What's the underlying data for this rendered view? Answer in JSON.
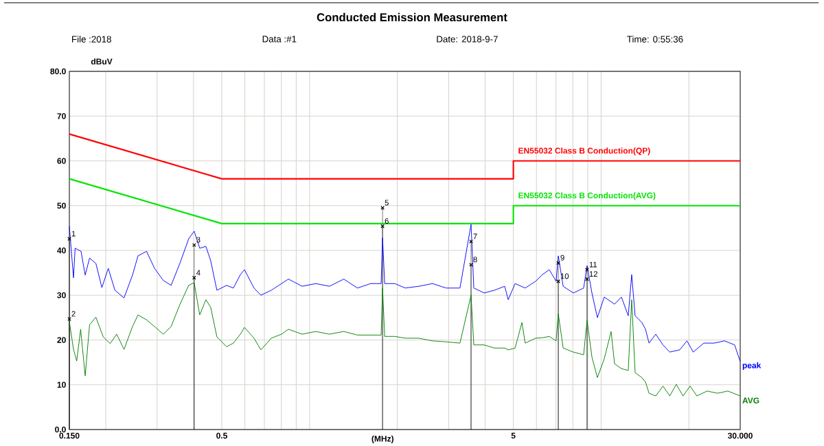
{
  "chart_data": {
    "type": "line",
    "title": "Conducted Emission Measurement",
    "xlabel": "(MHz)",
    "ylabel": "dBuV",
    "log": "x",
    "grid": true,
    "marker": "none",
    "line_style": "solid",
    "xlim": [
      0.15,
      30
    ],
    "ylim": [
      0,
      80
    ],
    "xticks": [
      {
        "value": 0.15,
        "label": "0.150"
      },
      {
        "value": 0.2,
        "label": null
      },
      {
        "value": 0.3,
        "label": null
      },
      {
        "value": 0.4,
        "label": null
      },
      {
        "value": 0.5,
        "label": "0.5"
      },
      {
        "value": 0.6,
        "label": null
      },
      {
        "value": 0.7,
        "label": null
      },
      {
        "value": 0.8,
        "label": null
      },
      {
        "value": 0.9,
        "label": null
      },
      {
        "value": 1,
        "label": null
      },
      {
        "value": 2,
        "label": null
      },
      {
        "value": 3,
        "label": null
      },
      {
        "value": 4,
        "label": null
      },
      {
        "value": 5,
        "label": "5"
      },
      {
        "value": 6,
        "label": null
      },
      {
        "value": 7,
        "label": null
      },
      {
        "value": 8,
        "label": null
      },
      {
        "value": 9,
        "label": null
      },
      {
        "value": 10,
        "label": null
      },
      {
        "value": 20,
        "label": null
      },
      {
        "value": 30,
        "label": "30.000"
      }
    ],
    "yticks": [
      {
        "value": 0,
        "label": "0.0"
      },
      10,
      20,
      30,
      40,
      50,
      60,
      70,
      {
        "value": 80,
        "label": "80.0"
      }
    ],
    "series": [
      {
        "name": "EN55032 Class B Conduction(QP)",
        "color": "#ff0000",
        "x": [
          0.15,
          0.5,
          5,
          5,
          30
        ],
        "values": [
          66,
          56,
          56,
          60,
          60
        ]
      },
      {
        "name": "EN55032 Class B Conduction(AVG)",
        "color": "#00e600",
        "x": [
          0.15,
          0.5,
          5,
          5,
          30
        ],
        "values": [
          56,
          46,
          46,
          50,
          50
        ]
      },
      {
        "name": "peak",
        "color": "#0000ff",
        "x": [
          0.15,
          0.155,
          0.157,
          0.1645,
          0.17,
          0.176,
          0.185,
          0.194,
          0.204,
          0.215,
          0.231,
          0.247,
          0.258,
          0.276,
          0.294,
          0.315,
          0.335,
          0.359,
          0.385,
          0.402,
          0.42,
          0.441,
          0.458,
          0.481,
          0.519,
          0.548,
          0.579,
          0.598,
          0.645,
          0.681,
          0.739,
          0.801,
          0.846,
          0.943,
          1.05,
          1.17,
          1.31,
          1.46,
          1.62,
          1.76,
          1.78,
          1.81,
          1.96,
          2.13,
          2.37,
          2.64,
          2.94,
          3.28,
          3.58,
          3.66,
          3.97,
          4.3,
          4.67,
          4.8,
          5.07,
          5.49,
          5.96,
          6.29,
          6.64,
          7.01,
          7.13,
          7.41,
          8.03,
          8.71,
          8.95,
          9.3,
          9.71,
          10.25,
          11.12,
          11.74,
          12.39,
          12.73,
          13.08,
          13.8,
          14.2,
          14.6,
          15.4,
          16.3,
          17.2,
          18.6,
          19.7,
          20.7,
          22.5,
          24.4,
          26.5,
          28.7,
          30
        ],
        "values": [
          45.4,
          33.9,
          40.5,
          39.8,
          34.5,
          38.3,
          37.1,
          31.7,
          36,
          31.1,
          29.4,
          34.5,
          38.8,
          39.8,
          36,
          33.3,
          32.2,
          37.1,
          42.6,
          44.3,
          40.5,
          40.9,
          37.7,
          31.1,
          32.2,
          31.6,
          34.6,
          35.7,
          31.6,
          30.0,
          31.1,
          32.6,
          33.6,
          32.0,
          32.6,
          32.0,
          33.6,
          31.6,
          32.6,
          32.6,
          42.8,
          32.6,
          32.6,
          31.6,
          32.0,
          32.6,
          31.6,
          31.6,
          45.8,
          31.6,
          30.5,
          31.1,
          32.0,
          29.0,
          32.6,
          31.6,
          33.1,
          34.6,
          35.7,
          33.1,
          38.8,
          32.0,
          30.5,
          31.6,
          36.6,
          30.5,
          25.0,
          29.6,
          28.0,
          29.6,
          25.4,
          34.6,
          25.4,
          23.9,
          22.4,
          19.3,
          21.3,
          18.9,
          17.3,
          17.8,
          19.8,
          17.3,
          19.3,
          19.3,
          19.8,
          18.9,
          15.2
        ]
      },
      {
        "name": "AVG",
        "color": "#008000",
        "x": [
          0.15,
          0.155,
          0.159,
          0.164,
          0.17,
          0.176,
          0.185,
          0.196,
          0.207,
          0.218,
          0.231,
          0.247,
          0.258,
          0.276,
          0.294,
          0.315,
          0.335,
          0.359,
          0.385,
          0.402,
          0.42,
          0.441,
          0.458,
          0.481,
          0.519,
          0.548,
          0.579,
          0.598,
          0.645,
          0.681,
          0.739,
          0.801,
          0.846,
          0.943,
          1.05,
          1.17,
          1.31,
          1.46,
          1.62,
          1.76,
          1.78,
          1.81,
          1.96,
          2.13,
          2.37,
          2.64,
          2.94,
          3.28,
          3.58,
          3.66,
          3.97,
          4.3,
          4.67,
          4.8,
          5.07,
          5.35,
          5.49,
          5.96,
          6.29,
          6.64,
          7.01,
          7.13,
          7.41,
          8.03,
          8.71,
          8.95,
          9.3,
          9.71,
          10.25,
          10.82,
          11.12,
          11.74,
          12.39,
          12.73,
          13.08,
          13.8,
          14.2,
          14.6,
          15.4,
          16.3,
          17.2,
          18.1,
          19.1,
          20.2,
          21.3,
          23.1,
          25.1,
          27.2,
          30
        ],
        "values": [
          24.1,
          17.9,
          15.3,
          22.4,
          12.0,
          23.4,
          25.1,
          20.7,
          19.2,
          21.3,
          17.9,
          23.0,
          25.6,
          24.5,
          23.0,
          21.3,
          23.0,
          27.9,
          32.2,
          32.8,
          25.6,
          29.0,
          27.3,
          20.7,
          18.5,
          19.3,
          21.3,
          22.8,
          20.4,
          17.8,
          20.4,
          21.3,
          22.4,
          21.3,
          21.9,
          21.3,
          21.9,
          21.1,
          21.1,
          21.1,
          31.6,
          20.8,
          20.8,
          20.4,
          20.4,
          19.8,
          19.6,
          19.3,
          30.0,
          18.9,
          18.9,
          18.2,
          18.2,
          17.8,
          18.2,
          23.9,
          19.3,
          20.4,
          20.5,
          20.8,
          19.8,
          25.9,
          18.2,
          17.3,
          16.7,
          24.4,
          16.2,
          11.6,
          15.8,
          21.9,
          14.7,
          13.6,
          13.2,
          29.0,
          12.7,
          11.6,
          10.6,
          8.1,
          7.5,
          9.7,
          7.5,
          10.1,
          7.5,
          9.7,
          7.5,
          8.6,
          8.1,
          8.6,
          7.5
        ]
      },
      {
        "type": "lollipop",
        "marker": "cross",
        "color": "#000000",
        "x": [
          0.15,
          0.15,
          0.402,
          0.402,
          1.78,
          1.78,
          3.58,
          3.58,
          7.13,
          7.13,
          8.95,
          8.95
        ],
        "values": [
          42.6,
          24.7,
          41.2,
          33.9,
          49.5,
          45.4,
          42.0,
          36.8,
          37.2,
          33.1,
          35.7,
          33.6
        ]
      }
    ],
    "annotations": [
      "File :2018",
      "Data :#1",
      "Date: 2018-9-7",
      "Time: 0:55:36",
      {
        "text": "1",
        "x": 0.15,
        "y": 42.6
      },
      {
        "text": "2",
        "x": 0.15,
        "y": 24.7
      },
      {
        "text": "3",
        "x": 0.402,
        "y": 41.2
      },
      {
        "text": "4",
        "x": 0.402,
        "y": 33.9
      },
      {
        "text": "5",
        "x": 1.78,
        "y": 49.5
      },
      {
        "text": "6",
        "x": 1.78,
        "y": 45.4
      },
      {
        "text": "7",
        "x": 3.58,
        "y": 42.0
      },
      {
        "text": "8",
        "x": 3.58,
        "y": 36.8
      },
      {
        "text": "9",
        "x": 7.13,
        "y": 37.2
      },
      {
        "text": "10",
        "x": 7.13,
        "y": 33.1
      },
      {
        "text": "11",
        "x": 8.95,
        "y": 35.7
      },
      {
        "text": "12",
        "x": 8.95,
        "y": 33.6
      }
    ]
  }
}
